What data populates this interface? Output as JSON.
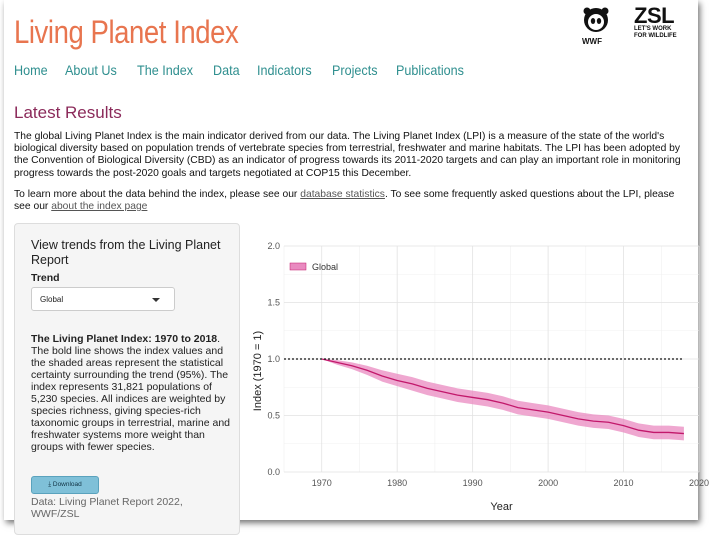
{
  "header": {
    "title": "Living Planet Index",
    "logos": {
      "wwf": "WWF",
      "zsl_main": "ZSL",
      "zsl_tag_line1": "LET'S WORK",
      "zsl_tag_line2": "FOR WILDLIFE"
    }
  },
  "nav": [
    "Home",
    "About Us",
    "The Index",
    "Data",
    "Indicators",
    "Projects",
    "Publications"
  ],
  "main": {
    "heading": "Latest Results",
    "para1": "The global Living Planet Index is the main indicator derived from our data. The Living Planet Index (LPI) is a measure of the state of the world's biological diversity based on population trends of vertebrate species from terrestrial, freshwater and marine habitats. The LPI has been adopted by the Convention of Biological Diversity (CBD) as an indicator of progress towards its 2011-2020 targets and can play an important role in monitoring progress towards the post-2020 goals and targets negotiated at COP15 this December.",
    "para2_a": "To learn more about the data behind the index, please see our ",
    "para2_link1": "database statistics",
    "para2_b": ". To see some frequently asked questions about the LPI, please see our ",
    "para2_link2": "about the index page"
  },
  "sidebar": {
    "heading": "View trends from the Living Planet Report",
    "trend_label": "Trend",
    "trend_selected": "Global",
    "desc_bold": "The Living Planet Index: 1970 to 2018",
    "desc_rest": ". The bold line shows the index values and the shaded areas represent the statistical certainty surrounding the trend (95%). The index represents 31,821 populations of 5,230 species. All indices are weighted by species richness, giving species-rich taxonomic groups in terrestrial, marine and freshwater systems more weight than groups with fewer species.",
    "download_label": "Download",
    "source": "Data: Living Planet Report 2022, WWF/ZSL"
  },
  "colors": {
    "title": "#e8754f",
    "nav": "#2f8f8f",
    "heading": "#8b2a5a",
    "series": "#c2186b",
    "band": "#e98ac0"
  },
  "chart_data": {
    "type": "line",
    "xlabel": "Year",
    "ylabel": "Index (1970 = 1)",
    "xlim": [
      1965,
      2020
    ],
    "ylim": [
      0,
      2
    ],
    "xticks": [
      1970,
      1980,
      1990,
      2000,
      2010,
      2020
    ],
    "yticks": [
      "0.0",
      "0.5",
      "1.0",
      "1.5",
      "2.0"
    ],
    "grid": true,
    "legend": "top-left",
    "reference_line": 1.0,
    "series": [
      {
        "name": "Global",
        "x": [
          1970,
          1972,
          1974,
          1976,
          1978,
          1980,
          1982,
          1984,
          1986,
          1988,
          1990,
          1992,
          1994,
          1996,
          1998,
          2000,
          2002,
          2004,
          2006,
          2008,
          2010,
          2012,
          2014,
          2016,
          2018
        ],
        "y": [
          1.0,
          0.97,
          0.94,
          0.9,
          0.85,
          0.81,
          0.78,
          0.74,
          0.71,
          0.68,
          0.66,
          0.64,
          0.61,
          0.57,
          0.55,
          0.53,
          0.5,
          0.47,
          0.45,
          0.44,
          0.41,
          0.37,
          0.35,
          0.35,
          0.34
        ],
        "lower": [
          1.0,
          0.95,
          0.91,
          0.86,
          0.8,
          0.76,
          0.72,
          0.68,
          0.65,
          0.62,
          0.6,
          0.58,
          0.55,
          0.51,
          0.49,
          0.47,
          0.44,
          0.41,
          0.39,
          0.38,
          0.35,
          0.31,
          0.29,
          0.29,
          0.28
        ],
        "upper": [
          1.0,
          0.99,
          0.97,
          0.94,
          0.9,
          0.87,
          0.84,
          0.8,
          0.77,
          0.74,
          0.72,
          0.7,
          0.67,
          0.63,
          0.61,
          0.59,
          0.56,
          0.53,
          0.51,
          0.5,
          0.47,
          0.43,
          0.41,
          0.41,
          0.4
        ]
      }
    ]
  }
}
